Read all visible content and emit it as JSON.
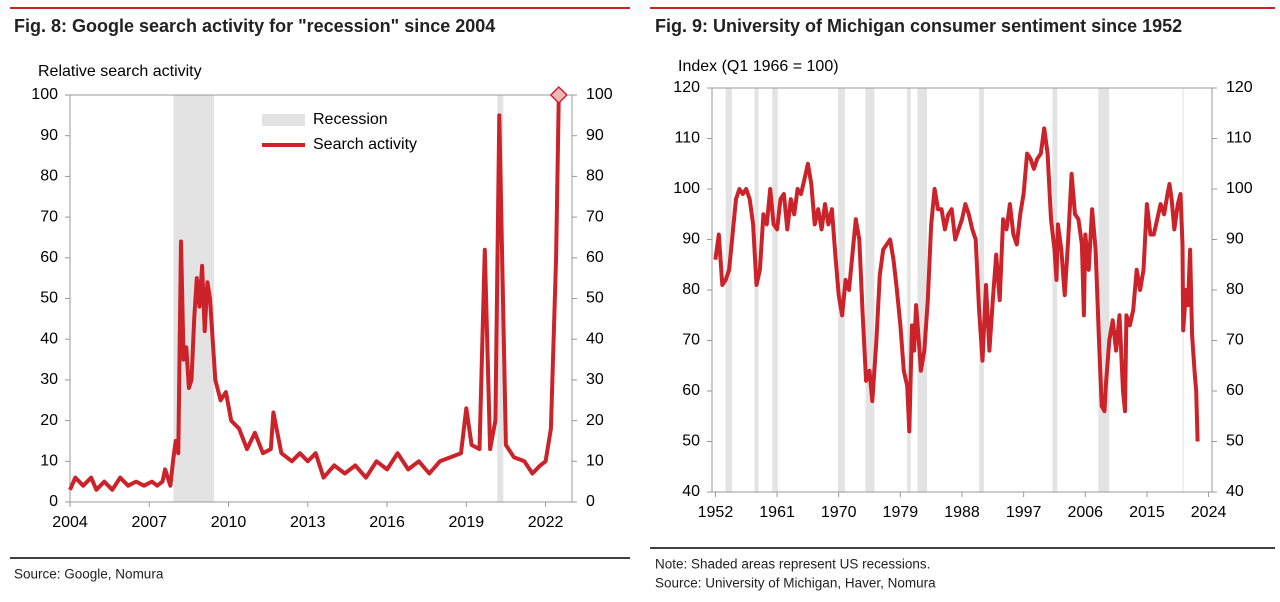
{
  "chart_data": [
    {
      "type": "line",
      "title": "Fig. 8: Google search activity for \"recession\" since 2004",
      "y_label": "Relative search activity",
      "notes": [
        "Source: Google, Nomura"
      ],
      "xlim": [
        2004,
        2023
      ],
      "xticks": [
        2004,
        2007,
        2010,
        2013,
        2016,
        2019,
        2022
      ],
      "ylim": [
        0,
        100
      ],
      "yticks": [
        0,
        10,
        20,
        30,
        40,
        50,
        60,
        70,
        80,
        90,
        100
      ],
      "y2lim": [
        0,
        100
      ],
      "y2ticks": [
        0,
        10,
        20,
        30,
        40,
        50,
        60,
        70,
        80,
        90,
        100
      ],
      "recession_label": "Recession",
      "recession_color": "#e3e3e3",
      "recessions": [
        [
          2007.92,
          2009.45
        ],
        [
          2020.17,
          2020.4
        ]
      ],
      "legend": true,
      "highlight_last": true,
      "x": [
        2004.0,
        2004.2,
        2004.5,
        2004.8,
        2005.0,
        2005.3,
        2005.6,
        2005.9,
        2006.2,
        2006.5,
        2006.8,
        2007.1,
        2007.3,
        2007.5,
        2007.6,
        2007.8,
        2007.9,
        2008.0,
        2008.1,
        2008.2,
        2008.3,
        2008.4,
        2008.5,
        2008.6,
        2008.7,
        2008.8,
        2008.9,
        2009.0,
        2009.1,
        2009.2,
        2009.3,
        2009.5,
        2009.7,
        2009.9,
        2010.1,
        2010.4,
        2010.7,
        2011.0,
        2011.3,
        2011.6,
        2011.7,
        2012.0,
        2012.4,
        2012.7,
        2013.0,
        2013.3,
        2013.6,
        2014.0,
        2014.4,
        2014.8,
        2015.2,
        2015.6,
        2016.0,
        2016.4,
        2016.8,
        2017.2,
        2017.6,
        2018.0,
        2018.4,
        2018.8,
        2019.0,
        2019.2,
        2019.5,
        2019.7,
        2019.9,
        2020.1,
        2020.25,
        2020.5,
        2020.8,
        2021.2,
        2021.5,
        2021.8,
        2022.0,
        2022.2,
        2022.4,
        2022.5
      ],
      "series": [
        {
          "name": "Search activity",
          "color": "#cc2229",
          "values": [
            3,
            6,
            4,
            6,
            3,
            5,
            3,
            6,
            4,
            5,
            4,
            5,
            4,
            5,
            8,
            4,
            10,
            15,
            12,
            64,
            35,
            38,
            28,
            30,
            45,
            55,
            48,
            58,
            42,
            54,
            50,
            30,
            25,
            27,
            20,
            18,
            13,
            17,
            12,
            13,
            22,
            12,
            10,
            12,
            10,
            12,
            6,
            9,
            7,
            9,
            6,
            10,
            8,
            12,
            8,
            10,
            7,
            10,
            11,
            12,
            23,
            14,
            13,
            62,
            13,
            20,
            95,
            14,
            11,
            10,
            7,
            9,
            10,
            18,
            60,
            100
          ]
        }
      ]
    },
    {
      "type": "line",
      "title": "Fig. 9: University of Michigan consumer sentiment since 1952",
      "y_label": "Index (Q1 1966 = 100)",
      "notes": [
        "Note: Shaded areas represent US recessions.",
        "Source: University of Michigan, Haver, Nomura"
      ],
      "xlim": [
        1951.5,
        2024.5
      ],
      "xticks": [
        1952,
        1961,
        1970,
        1979,
        1988,
        1997,
        2006,
        2015,
        2024
      ],
      "ylim": [
        40,
        120
      ],
      "yticks": [
        40,
        50,
        60,
        70,
        80,
        90,
        100,
        110,
        120
      ],
      "y2lim": [
        40,
        120
      ],
      "y2ticks": [
        40,
        50,
        60,
        70,
        80,
        90,
        100,
        110,
        120
      ],
      "recession_color": "#e3e3e3",
      "recessions": [
        [
          1953.5,
          1954.4
        ],
        [
          1957.7,
          1958.3
        ],
        [
          1960.3,
          1961.1
        ],
        [
          1969.9,
          1970.9
        ],
        [
          1973.9,
          1975.2
        ],
        [
          1980.0,
          1980.5
        ],
        [
          1981.5,
          1982.9
        ],
        [
          1990.5,
          1991.2
        ],
        [
          2001.2,
          2001.9
        ],
        [
          2007.9,
          2009.5
        ],
        [
          2020.2,
          2020.35
        ]
      ],
      "legend": false,
      "highlight_last": false,
      "x": [
        1952.0,
        1952.5,
        1953.0,
        1953.5,
        1954.0,
        1955.0,
        1955.5,
        1956.0,
        1956.5,
        1957.0,
        1957.5,
        1958.0,
        1958.5,
        1959.0,
        1959.5,
        1960.0,
        1960.5,
        1961.0,
        1961.5,
        1962.0,
        1962.5,
        1963.0,
        1963.5,
        1964.0,
        1964.5,
        1965.0,
        1965.5,
        1966.0,
        1966.5,
        1967.0,
        1967.5,
        1968.0,
        1968.5,
        1969.0,
        1969.5,
        1970.0,
        1970.5,
        1971.0,
        1971.5,
        1972.0,
        1972.5,
        1973.0,
        1973.5,
        1974.0,
        1974.5,
        1974.9,
        1975.5,
        1976.0,
        1976.5,
        1977.0,
        1977.5,
        1978.0,
        1978.5,
        1979.0,
        1979.5,
        1980.0,
        1980.3,
        1980.7,
        1981.0,
        1981.3,
        1981.7,
        1982.0,
        1982.5,
        1983.0,
        1983.5,
        1984.0,
        1984.5,
        1985.0,
        1985.5,
        1986.0,
        1986.5,
        1987.0,
        1987.5,
        1988.0,
        1988.5,
        1989.0,
        1989.5,
        1990.0,
        1990.5,
        1991.0,
        1991.5,
        1992.0,
        1992.5,
        1993.0,
        1993.5,
        1994.0,
        1994.5,
        1995.0,
        1995.5,
        1996.0,
        1996.5,
        1997.0,
        1997.5,
        1998.0,
        1998.5,
        1999.0,
        1999.5,
        2000.0,
        2000.5,
        2001.0,
        2001.5,
        2001.8,
        2002.0,
        2002.5,
        2003.0,
        2003.5,
        2004.0,
        2004.5,
        2005.0,
        2005.5,
        2005.8,
        2006.0,
        2006.5,
        2007.0,
        2007.5,
        2008.0,
        2008.4,
        2008.8,
        2009.0,
        2009.5,
        2010.0,
        2010.5,
        2011.0,
        2011.5,
        2011.8,
        2012.0,
        2012.5,
        2013.0,
        2013.5,
        2014.0,
        2014.5,
        2015.0,
        2015.5,
        2016.0,
        2016.5,
        2017.0,
        2017.5,
        2018.0,
        2018.3,
        2018.6,
        2019.0,
        2019.5,
        2019.9,
        2020.2,
        2020.3,
        2020.7,
        2021.0,
        2021.3,
        2021.6,
        2022.0,
        2022.2,
        2022.4
      ],
      "series": [
        {
          "name": "Consumer sentiment",
          "color": "#cc2229",
          "values": [
            86,
            91,
            81,
            82,
            84,
            98,
            100,
            99,
            100,
            98,
            93,
            81,
            84,
            95,
            93,
            100,
            93,
            92,
            98,
            99,
            92,
            98,
            95,
            100,
            99,
            102,
            105,
            101,
            93,
            96,
            92,
            97,
            93,
            96,
            87,
            79,
            75,
            82,
            80,
            87,
            94,
            90,
            75,
            62,
            64,
            58,
            70,
            83,
            88,
            89,
            90,
            86,
            80,
            73,
            64,
            61,
            52,
            73,
            68,
            77,
            70,
            64,
            68,
            78,
            93,
            100,
            96,
            96,
            92,
            95,
            96,
            90,
            92,
            94,
            97,
            95,
            92,
            90,
            76,
            66,
            81,
            68,
            78,
            87,
            78,
            94,
            92,
            97,
            91,
            89,
            95,
            99,
            107,
            106,
            104,
            106,
            107,
            112,
            107,
            94,
            88,
            82,
            93,
            88,
            79,
            90,
            103,
            95,
            94,
            89,
            75,
            91,
            84,
            96,
            88,
            70,
            57,
            56,
            61,
            70,
            74,
            68,
            75,
            60,
            56,
            75,
            73,
            76,
            84,
            80,
            84,
            97,
            91,
            91,
            94,
            97,
            95,
            99,
            101,
            98,
            92,
            97,
            99,
            89,
            72,
            80,
            77,
            88,
            71,
            63,
            60,
            50
          ]
        }
      ]
    }
  ]
}
